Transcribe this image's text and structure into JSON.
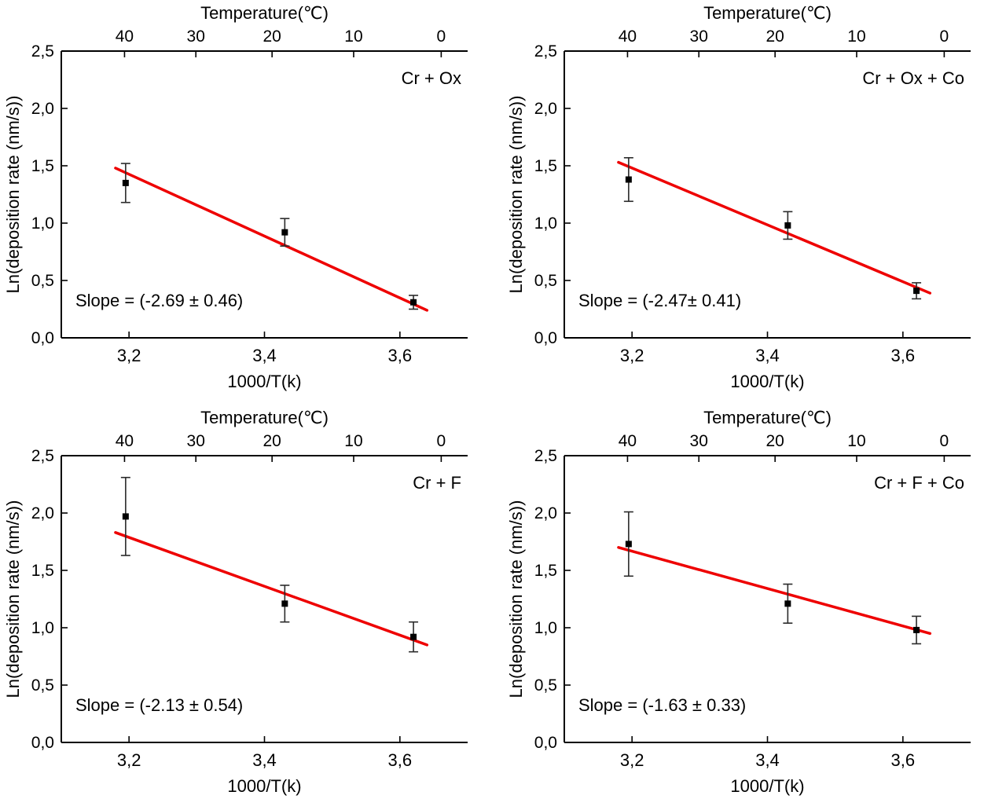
{
  "page": {
    "background": "#ffffff"
  },
  "colors": {
    "fit_line": "#ee0000",
    "marker": "#000000",
    "error_bar": "#2a2a2a",
    "axis": "#000000",
    "text": "#000000"
  },
  "chart_data": [
    {
      "type": "scatter",
      "series_label": "Cr + Ox",
      "slope_label": "Slope = (-2.69 ± 0.46)",
      "top_axis_title": "Temperature(℃)",
      "top_ticks": [
        {
          "t": 40,
          "label": "40"
        },
        {
          "t": 30,
          "label": "30"
        },
        {
          "t": 20,
          "label": "20"
        },
        {
          "t": 10,
          "label": "10"
        },
        {
          "t": 0,
          "label": "0"
        }
      ],
      "xlabel": "1000/T(k)",
      "ylabel": "Ln(deposition rate (nm/s))",
      "x_ticks": [
        {
          "v": 3.2,
          "label": "3,2"
        },
        {
          "v": 3.4,
          "label": "3,4"
        },
        {
          "v": 3.6,
          "label": "3,6"
        }
      ],
      "y_ticks": [
        {
          "v": 0.0,
          "label": "0,0"
        },
        {
          "v": 0.5,
          "label": "0,5"
        },
        {
          "v": 1.0,
          "label": "1,0"
        },
        {
          "v": 1.5,
          "label": "1,5"
        },
        {
          "v": 2.0,
          "label": "2,0"
        },
        {
          "v": 2.5,
          "label": "2,5"
        }
      ],
      "xlim": [
        3.1,
        3.7
      ],
      "ylim": [
        0,
        2.5
      ],
      "points": [
        {
          "x": 3.195,
          "y": 1.35,
          "err": 0.17
        },
        {
          "x": 3.43,
          "y": 0.92,
          "err": 0.12
        },
        {
          "x": 3.62,
          "y": 0.31,
          "err": 0.06
        }
      ],
      "fit": {
        "slope": -2.69,
        "x1": 3.18,
        "y1": 1.48,
        "x2": 3.64,
        "y2": 0.24
      }
    },
    {
      "type": "scatter",
      "series_label": "Cr + Ox + Co",
      "slope_label": "Slope = (-2.47± 0.41)",
      "top_axis_title": "Temperature(℃)",
      "top_ticks": [
        {
          "t": 40,
          "label": "40"
        },
        {
          "t": 30,
          "label": "30"
        },
        {
          "t": 20,
          "label": "20"
        },
        {
          "t": 10,
          "label": "10"
        },
        {
          "t": 0,
          "label": "0"
        }
      ],
      "xlabel": "1000/T(k)",
      "ylabel": "Ln(deposition rate (nm/s))",
      "x_ticks": [
        {
          "v": 3.2,
          "label": "3,2"
        },
        {
          "v": 3.4,
          "label": "3,4"
        },
        {
          "v": 3.6,
          "label": "3,6"
        }
      ],
      "y_ticks": [
        {
          "v": 0.0,
          "label": "0,0"
        },
        {
          "v": 0.5,
          "label": "0,5"
        },
        {
          "v": 1.0,
          "label": "1,0"
        },
        {
          "v": 1.5,
          "label": "1,5"
        },
        {
          "v": 2.0,
          "label": "2,0"
        },
        {
          "v": 2.5,
          "label": "2,5"
        }
      ],
      "xlim": [
        3.1,
        3.7
      ],
      "ylim": [
        0,
        2.5
      ],
      "points": [
        {
          "x": 3.195,
          "y": 1.38,
          "err": 0.19
        },
        {
          "x": 3.43,
          "y": 0.98,
          "err": 0.12
        },
        {
          "x": 3.62,
          "y": 0.41,
          "err": 0.07
        }
      ],
      "fit": {
        "slope": -2.47,
        "x1": 3.18,
        "y1": 1.53,
        "x2": 3.64,
        "y2": 0.39
      }
    },
    {
      "type": "scatter",
      "series_label": "Cr + F",
      "slope_label": "Slope = (-2.13 ± 0.54)",
      "top_axis_title": "Temperature(℃)",
      "top_ticks": [
        {
          "t": 40,
          "label": "40"
        },
        {
          "t": 30,
          "label": "30"
        },
        {
          "t": 20,
          "label": "20"
        },
        {
          "t": 10,
          "label": "10"
        },
        {
          "t": 0,
          "label": "0"
        }
      ],
      "xlabel": "1000/T(k)",
      "ylabel": "Ln(deposition rate (nm/s))",
      "x_ticks": [
        {
          "v": 3.2,
          "label": "3,2"
        },
        {
          "v": 3.4,
          "label": "3,4"
        },
        {
          "v": 3.6,
          "label": "3,6"
        }
      ],
      "y_ticks": [
        {
          "v": 0.0,
          "label": "0,0"
        },
        {
          "v": 0.5,
          "label": "0,5"
        },
        {
          "v": 1.0,
          "label": "1,0"
        },
        {
          "v": 1.5,
          "label": "1,5"
        },
        {
          "v": 2.0,
          "label": "2,0"
        },
        {
          "v": 2.5,
          "label": "2,5"
        }
      ],
      "xlim": [
        3.1,
        3.7
      ],
      "ylim": [
        0,
        2.5
      ],
      "points": [
        {
          "x": 3.195,
          "y": 1.97,
          "err": 0.34
        },
        {
          "x": 3.43,
          "y": 1.21,
          "err": 0.16
        },
        {
          "x": 3.62,
          "y": 0.92,
          "err": 0.13
        }
      ],
      "fit": {
        "slope": -2.13,
        "x1": 3.18,
        "y1": 1.83,
        "x2": 3.64,
        "y2": 0.85
      }
    },
    {
      "type": "scatter",
      "series_label": "Cr + F + Co",
      "slope_label": "Slope = (-1.63 ± 0.33)",
      "top_axis_title": "Temperature(℃)",
      "top_ticks": [
        {
          "t": 40,
          "label": "40"
        },
        {
          "t": 30,
          "label": "30"
        },
        {
          "t": 20,
          "label": "20"
        },
        {
          "t": 10,
          "label": "10"
        },
        {
          "t": 0,
          "label": "0"
        }
      ],
      "xlabel": "1000/T(k)",
      "ylabel": "Ln(deposition rate (nm/s))",
      "x_ticks": [
        {
          "v": 3.2,
          "label": "3,2"
        },
        {
          "v": 3.4,
          "label": "3,4"
        },
        {
          "v": 3.6,
          "label": "3,6"
        }
      ],
      "y_ticks": [
        {
          "v": 0.0,
          "label": "0,0"
        },
        {
          "v": 0.5,
          "label": "0,5"
        },
        {
          "v": 1.0,
          "label": "1,0"
        },
        {
          "v": 1.5,
          "label": "1,5"
        },
        {
          "v": 2.0,
          "label": "2,0"
        },
        {
          "v": 2.5,
          "label": "2,5"
        }
      ],
      "xlim": [
        3.1,
        3.7
      ],
      "ylim": [
        0,
        2.5
      ],
      "points": [
        {
          "x": 3.195,
          "y": 1.73,
          "err": 0.28
        },
        {
          "x": 3.43,
          "y": 1.21,
          "err": 0.17
        },
        {
          "x": 3.62,
          "y": 0.98,
          "err": 0.12
        }
      ],
      "fit": {
        "slope": -1.63,
        "x1": 3.18,
        "y1": 1.7,
        "x2": 3.64,
        "y2": 0.95
      }
    }
  ]
}
